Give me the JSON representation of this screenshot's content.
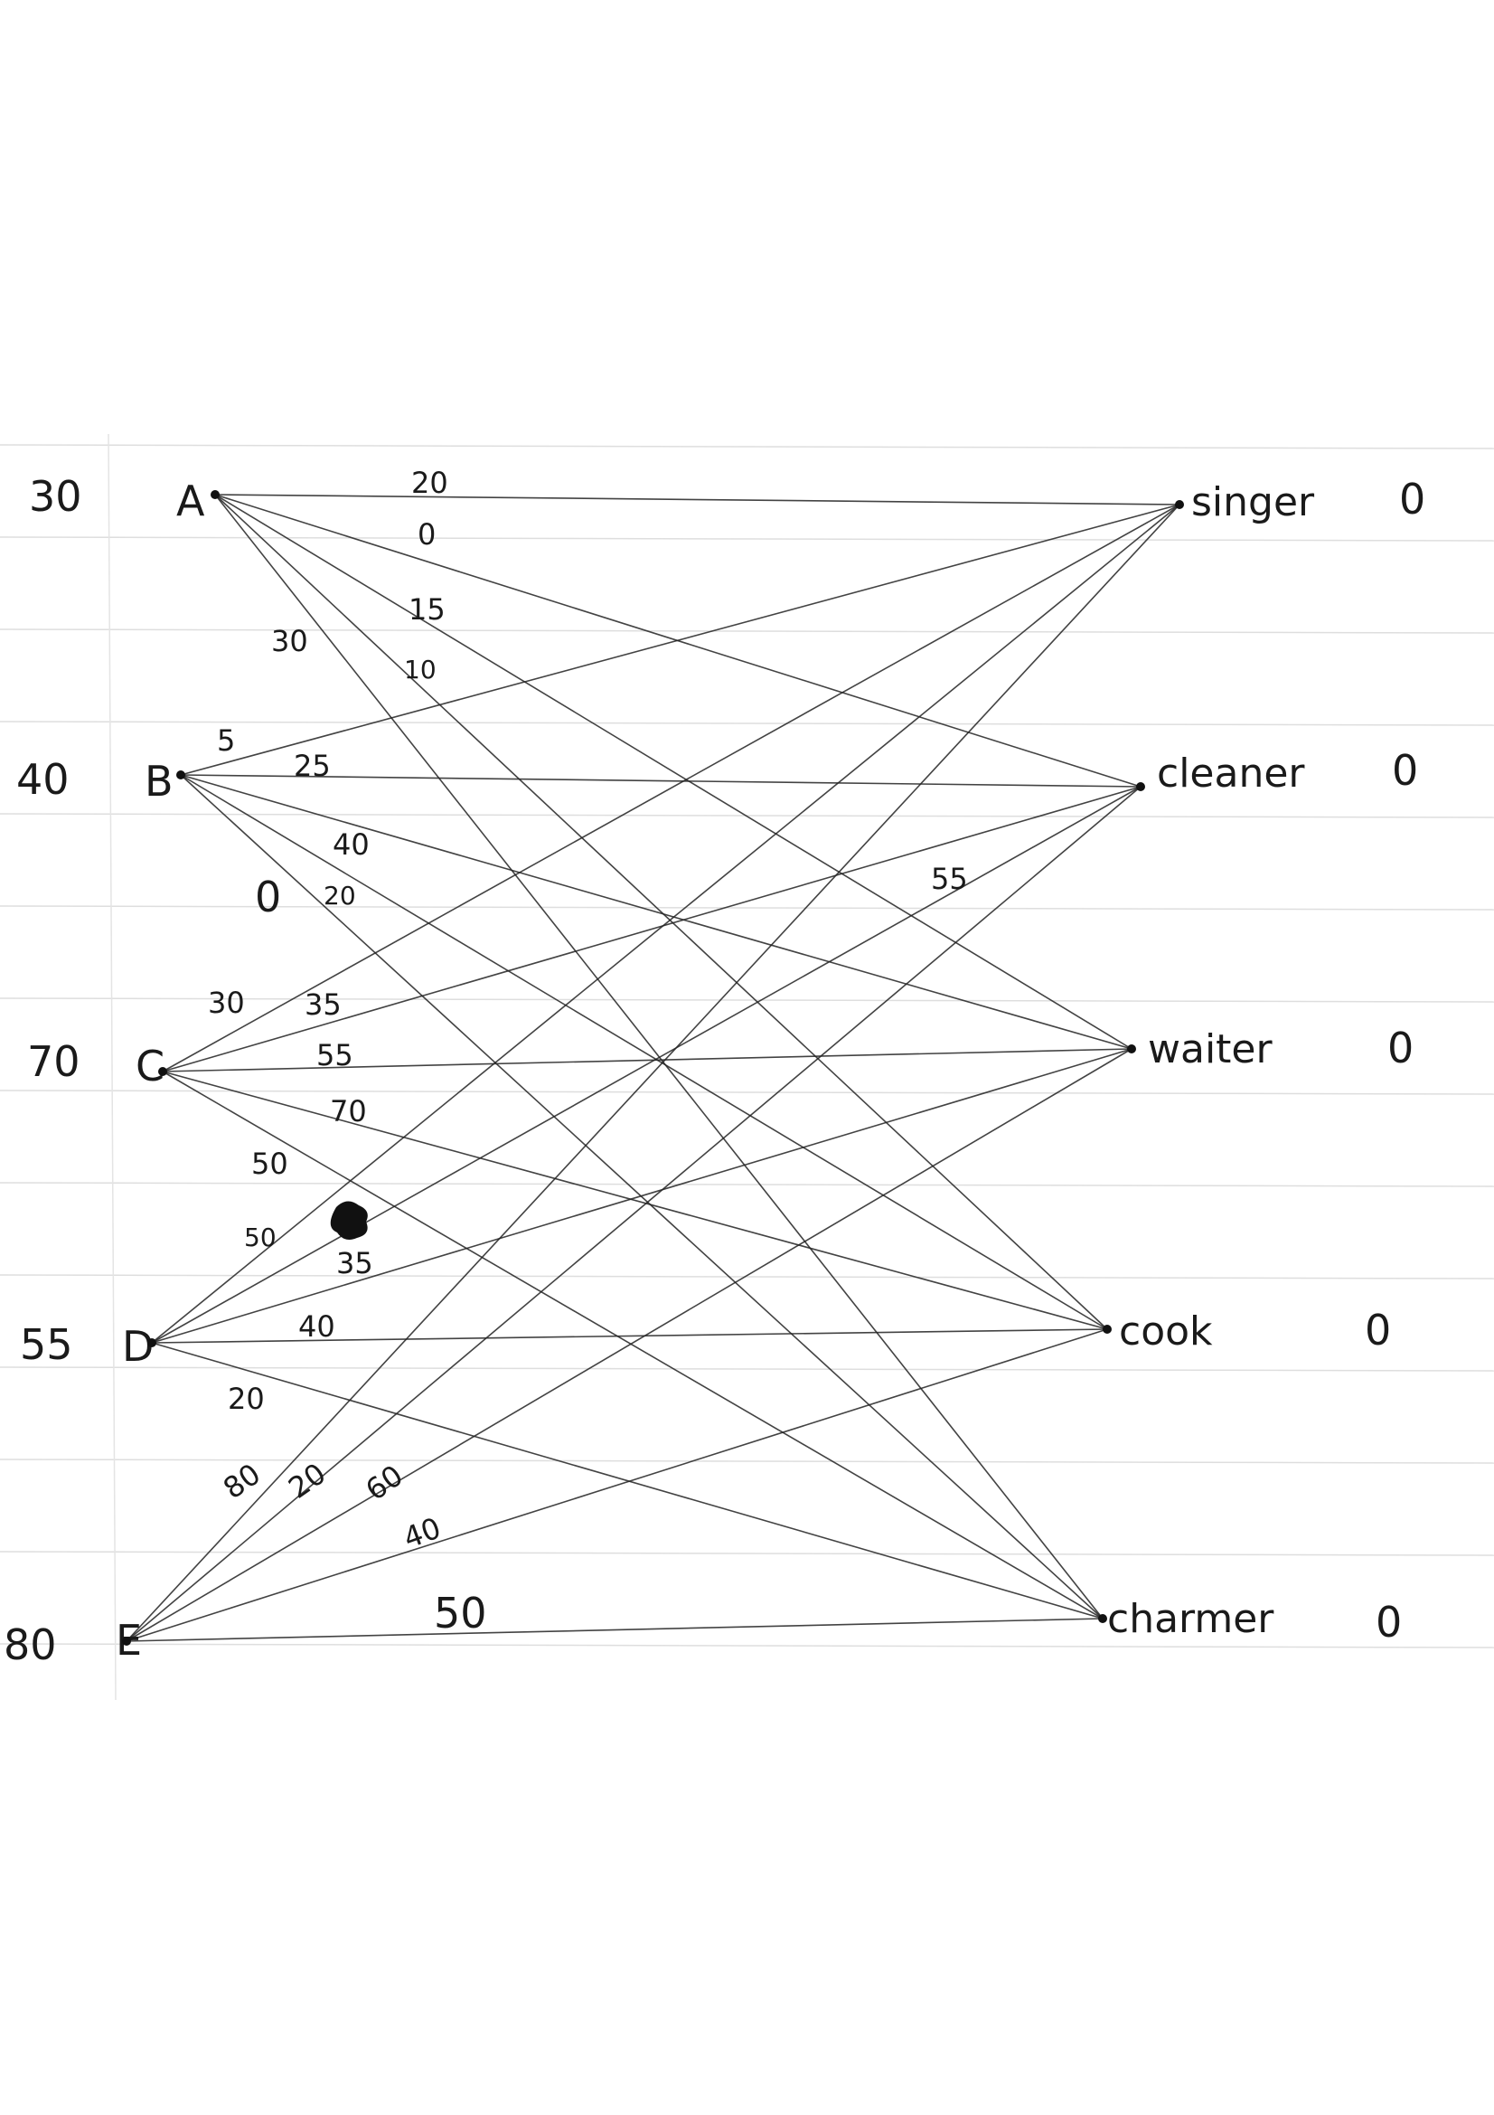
{
  "diagram": {
    "type": "bipartite-graph",
    "left_nodes": [
      {
        "id": "A",
        "label": "A",
        "value": "30"
      },
      {
        "id": "B",
        "label": "B",
        "value": "40"
      },
      {
        "id": "C",
        "label": "C",
        "value": "70"
      },
      {
        "id": "D",
        "label": "D",
        "value": "55"
      },
      {
        "id": "E",
        "label": "E",
        "value": "80"
      }
    ],
    "right_nodes": [
      {
        "id": "singer",
        "label": "singer",
        "value": "0"
      },
      {
        "id": "cleaner",
        "label": "cleaner",
        "value": "0"
      },
      {
        "id": "waiter",
        "label": "waiter",
        "value": "0"
      },
      {
        "id": "cook",
        "label": "cook",
        "value": "0"
      },
      {
        "id": "charmer",
        "label": "charmer",
        "value": "0"
      }
    ],
    "edges": [
      {
        "from": "A",
        "to": "singer",
        "weight": "20"
      },
      {
        "from": "A",
        "to": "cleaner",
        "weight": "0"
      },
      {
        "from": "A",
        "to": "waiter",
        "weight": "15"
      },
      {
        "from": "A",
        "to": "cook",
        "weight": "10"
      },
      {
        "from": "A",
        "to": "charmer",
        "weight": "30"
      },
      {
        "from": "B",
        "to": "singer",
        "weight": "5"
      },
      {
        "from": "B",
        "to": "cleaner",
        "weight": "25"
      },
      {
        "from": "B",
        "to": "waiter",
        "weight": "40"
      },
      {
        "from": "B",
        "to": "cook",
        "weight": "20"
      },
      {
        "from": "B",
        "to": "charmer",
        "weight": "0"
      },
      {
        "from": "C",
        "to": "singer",
        "weight": "30"
      },
      {
        "from": "C",
        "to": "cleaner",
        "weight": "35"
      },
      {
        "from": "C",
        "to": "waiter",
        "weight": "55"
      },
      {
        "from": "C",
        "to": "cook",
        "weight": "70"
      },
      {
        "from": "C",
        "to": "charmer",
        "weight": "50"
      },
      {
        "from": "D",
        "to": "singer",
        "weight": "50"
      },
      {
        "from": "D",
        "to": "cleaner",
        "weight": "55"
      },
      {
        "from": "D",
        "to": "waiter",
        "weight": "35"
      },
      {
        "from": "D",
        "to": "cook",
        "weight": "40"
      },
      {
        "from": "D",
        "to": "charmer",
        "weight": "20"
      },
      {
        "from": "E",
        "to": "singer",
        "weight": "80"
      },
      {
        "from": "E",
        "to": "cleaner",
        "weight": "20"
      },
      {
        "from": "E",
        "to": "waiter",
        "weight": "60"
      },
      {
        "from": "E",
        "to": "cook",
        "weight": "40"
      },
      {
        "from": "E",
        "to": "charmer",
        "weight": "50"
      }
    ]
  }
}
